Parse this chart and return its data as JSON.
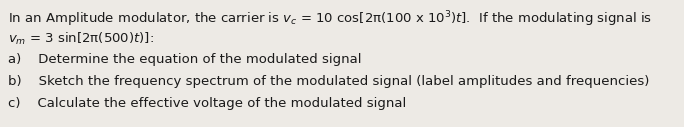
{
  "background_color": "#edeae5",
  "line1": "In an Amplitude modulator, the carrier is $v_c$ = 10 cos[2π(100 x 10$^3$)$t$].  If the modulating signal is",
  "line2": "$v_m$ = 3 sin[2π(500)$t$)]:",
  "item_a": "a)    Determine the equation of the modulated signal",
  "item_b": "b)    Sketch the frequency spectrum of the modulated signal (label amplitudes and frequencies)",
  "item_c": "c)    Calculate the effective voltage of the modulated signal",
  "font_size": 9.5,
  "text_color": "#1a1a1a",
  "fig_width": 6.84,
  "fig_height": 1.27,
  "dpi": 100
}
